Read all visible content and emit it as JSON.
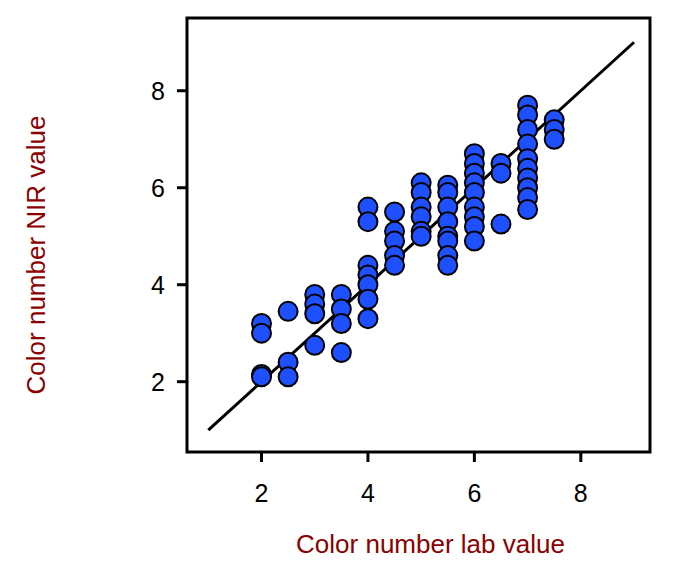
{
  "chart_data": {
    "type": "scatter",
    "x_label": "Color number lab value",
    "y_label": "Color number NIR value",
    "xlim": [
      0.6,
      9.3
    ],
    "ylim": [
      0.55,
      9.5
    ],
    "xticks": [
      2,
      4,
      6,
      8
    ],
    "yticks": [
      2,
      4,
      6,
      8
    ],
    "grid": false,
    "series": [
      {
        "type": "scatter",
        "marker": "circle",
        "color": "#1e50ff",
        "x": [
          2,
          2,
          2,
          2,
          2.5,
          2.5,
          2.5,
          3,
          3,
          3,
          3,
          3.5,
          3.5,
          3.5,
          3.5,
          4,
          4,
          4,
          4,
          4,
          4,
          4,
          4.5,
          4.5,
          4.5,
          4.5,
          4.5,
          5,
          5,
          5,
          5,
          5,
          5,
          5.5,
          5.5,
          5.5,
          5.5,
          5.5,
          5.5,
          5.5,
          5.5,
          6,
          6,
          6,
          6,
          6,
          6,
          6,
          6,
          6,
          6.5,
          6.5,
          6.5,
          7,
          7,
          7,
          7,
          7,
          7,
          7,
          7,
          7,
          7,
          7.5,
          7.5,
          7.5
        ],
        "values": [
          3.2,
          3.0,
          2.15,
          2.1,
          3.45,
          2.4,
          2.1,
          3.8,
          3.6,
          3.4,
          2.75,
          3.8,
          3.5,
          3.2,
          2.6,
          5.6,
          5.3,
          4.4,
          4.2,
          4.0,
          3.7,
          3.3,
          5.5,
          5.1,
          4.9,
          4.6,
          4.4,
          6.1,
          5.9,
          5.6,
          5.4,
          5.1,
          5.0,
          6.05,
          5.9,
          5.6,
          5.3,
          5.0,
          4.9,
          4.6,
          4.4,
          6.7,
          6.5,
          6.3,
          6.1,
          5.9,
          5.6,
          5.4,
          5.2,
          4.9,
          6.5,
          6.3,
          5.25,
          7.7,
          7.5,
          7.2,
          6.9,
          6.6,
          6.4,
          6.2,
          6.0,
          5.8,
          5.55,
          7.4,
          7.2,
          7.0
        ]
      },
      {
        "type": "line",
        "line_style": "solid",
        "color": "#000000",
        "x": [
          1,
          9
        ],
        "values": [
          1,
          9
        ]
      }
    ]
  }
}
